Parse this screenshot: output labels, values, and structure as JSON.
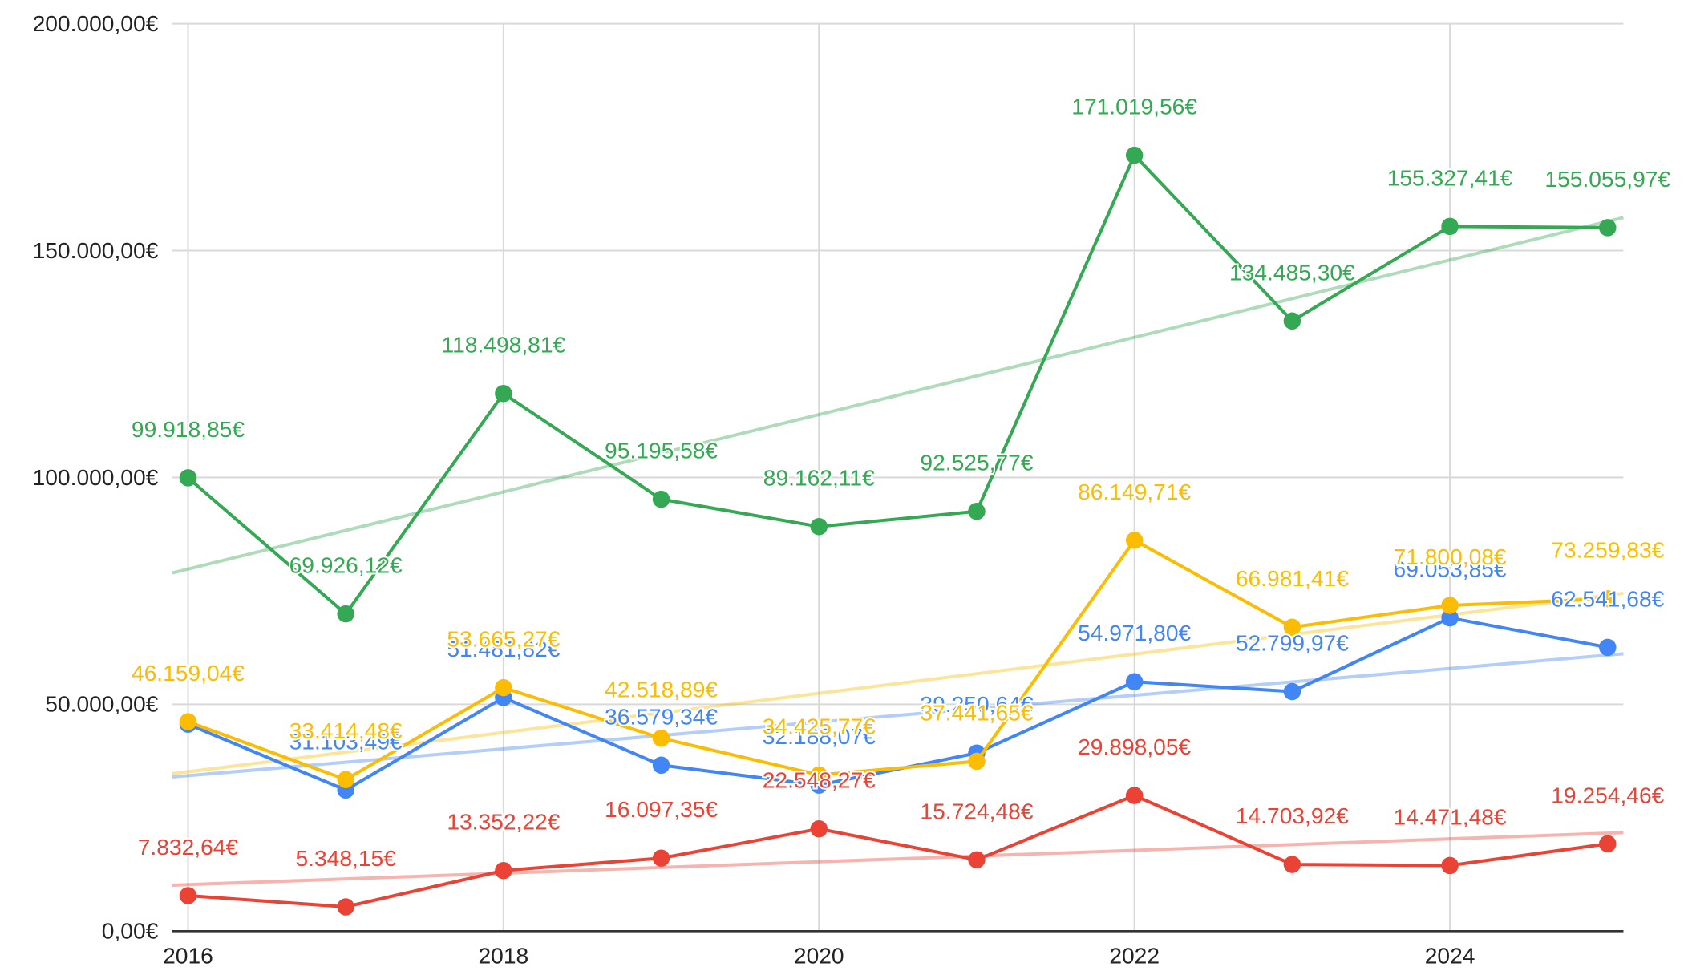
{
  "chart_data": {
    "type": "line",
    "x": [
      2016,
      2017,
      2018,
      2019,
      2020,
      2021,
      2022,
      2023,
      2024,
      2025
    ],
    "xlim": [
      2015.9,
      2025.1
    ],
    "xticks": [
      2016,
      2018,
      2020,
      2022,
      2024
    ],
    "ylim": [
      0,
      200000
    ],
    "yticks": [
      {
        "value": 0,
        "label": "0,00€"
      },
      {
        "value": 50000,
        "label": "50.000,00€"
      },
      {
        "value": 100000,
        "label": "100.000,00€"
      },
      {
        "value": 150000,
        "label": "150.000,00€"
      },
      {
        "value": 200000,
        "label": "200.000,00€"
      }
    ],
    "grid": true,
    "trendline": true,
    "series": [
      {
        "color": "#34a853",
        "values": [
          99918.85,
          69926.12,
          118498.81,
          95195.58,
          89162.11,
          92525.77,
          171019.56,
          134485.3,
          155327.41,
          155055.97
        ],
        "value_labels": [
          "99.918,85€",
          "69.926,12€",
          "118.498,81€",
          "95.195,58€",
          "89.162,11€",
          "92.525,77€",
          "171.019,56€",
          "134.485,30€",
          "155.327,41€",
          "155.055,97€"
        ]
      },
      {
        "color": "#4285f4",
        "values": [
          45600,
          31103.49,
          51481.82,
          36579.34,
          32188.07,
          39250.64,
          54971.8,
          52799.97,
          69053.85,
          62541.68
        ],
        "value_labels": [
          null,
          "31.103,49€",
          "51.481,82€",
          "36.579,34€",
          "32.188,07€",
          "39.250,64€",
          "54.971,80€",
          "52.799,97€",
          "69.053,85€",
          "62.541,68€"
        ]
      },
      {
        "color": "#fbbc04",
        "values": [
          46159.04,
          33414.48,
          53665.27,
          42518.89,
          34425.77,
          37441.65,
          86149.71,
          66981.41,
          71800.08,
          73259.83
        ],
        "value_labels": [
          "46.159,04€",
          "33.414,48€",
          "53.665,27€",
          "42.518,89€",
          "34.425,77€",
          "37.441,65€",
          "86.149,71€",
          "66.981,41€",
          "71.800,08€",
          "73.259,83€"
        ]
      },
      {
        "color": "#ea4335",
        "values": [
          7832.64,
          5348.15,
          13352.22,
          16097.35,
          22548.27,
          15724.48,
          29898.05,
          14703.92,
          14471.48,
          19254.46
        ],
        "value_labels": [
          "7.832,64€",
          "5.348,15€",
          "13.352,22€",
          "16.097,35€",
          "22.548,27€",
          "15.724,48€",
          "29.898,05€",
          "14.703,92€",
          "14.471,48€",
          "19.254,46€"
        ]
      }
    ]
  }
}
